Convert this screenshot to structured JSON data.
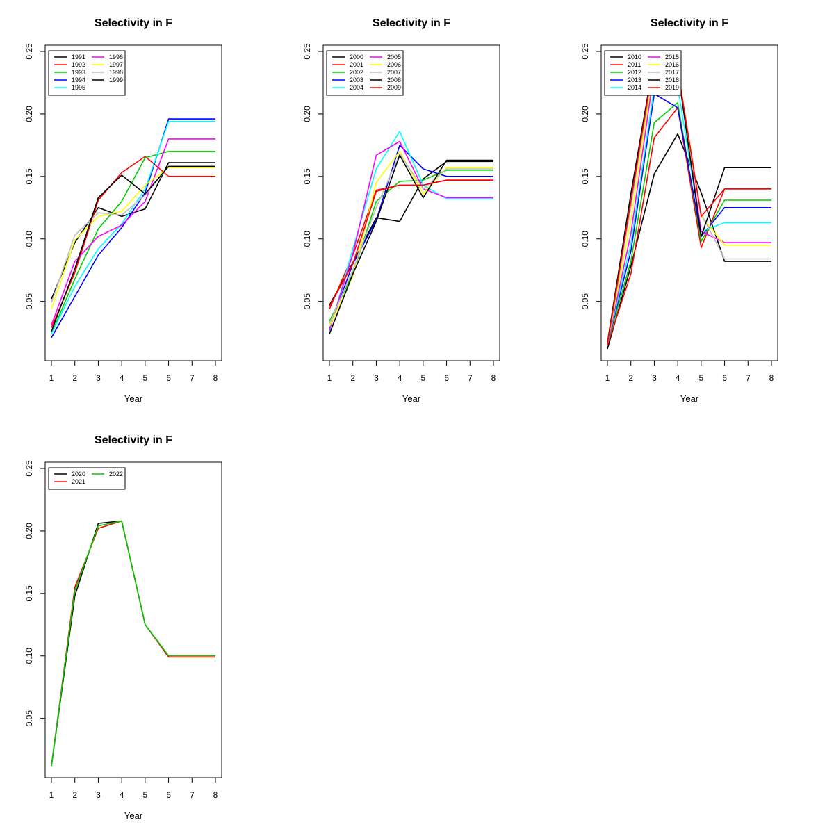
{
  "chart_data": [
    {
      "type": "line",
      "title": "Selectivity in F",
      "xlabel": "Year",
      "ylabel": "",
      "x": [
        1,
        2,
        3,
        4,
        5,
        6,
        7,
        8
      ],
      "x_ticks": [
        "1",
        "2",
        "3",
        "4",
        "5",
        "6",
        "7",
        "8"
      ],
      "y_ticks": [
        "0.05",
        "0.10",
        "0.15",
        "0.20",
        "0.25"
      ],
      "xlim": [
        1,
        8
      ],
      "ylim": [
        0.012,
        0.25
      ],
      "legend_position": "top-left",
      "legend_columns": 2,
      "series": [
        {
          "name": "1991",
          "color": "#000000",
          "values": [
            0.052,
            0.097,
            0.125,
            0.118,
            0.124,
            0.161,
            0.161,
            0.161
          ]
        },
        {
          "name": "1992",
          "color": "#ff0000",
          "values": [
            0.029,
            0.073,
            0.131,
            0.153,
            0.166,
            0.15,
            0.15,
            0.15
          ]
        },
        {
          "name": "1993",
          "color": "#00cd00",
          "values": [
            0.024,
            0.068,
            0.108,
            0.13,
            0.165,
            0.17,
            0.17,
            0.17
          ]
        },
        {
          "name": "1994",
          "color": "#0000ff",
          "values": [
            0.021,
            0.054,
            0.087,
            0.109,
            0.137,
            0.196,
            0.196,
            0.196
          ]
        },
        {
          "name": "1995",
          "color": "#00ffff",
          "values": [
            0.024,
            0.062,
            0.092,
            0.112,
            0.14,
            0.194,
            0.194,
            0.194
          ]
        },
        {
          "name": "1996",
          "color": "#ff00ff",
          "values": [
            0.031,
            0.082,
            0.102,
            0.111,
            0.13,
            0.18,
            0.18,
            0.18
          ]
        },
        {
          "name": "1997",
          "color": "#ffff00",
          "values": [
            0.044,
            0.099,
            0.118,
            0.122,
            0.143,
            0.157,
            0.157,
            0.157
          ]
        },
        {
          "name": "1998",
          "color": "#bebebe",
          "values": [
            0.049,
            0.103,
            0.121,
            0.119,
            0.135,
            0.158,
            0.158,
            0.158
          ]
        },
        {
          "name": "1999",
          "color": "#000000",
          "values": [
            0.026,
            0.076,
            0.133,
            0.151,
            0.136,
            0.158,
            0.158,
            0.158
          ]
        }
      ]
    },
    {
      "type": "line",
      "title": "Selectivity in F",
      "xlabel": "Year",
      "ylabel": "",
      "x": [
        1,
        2,
        3,
        4,
        5,
        6,
        7,
        8
      ],
      "x_ticks": [
        "1",
        "2",
        "3",
        "4",
        "5",
        "6",
        "7",
        "8"
      ],
      "y_ticks": [
        "0.05",
        "0.10",
        "0.15",
        "0.20",
        "0.25"
      ],
      "xlim": [
        1,
        8
      ],
      "ylim": [
        0.012,
        0.25
      ],
      "legend_position": "top-left",
      "legend_columns": 2,
      "series": [
        {
          "name": "2000",
          "color": "#000000",
          "values": [
            0.047,
            0.081,
            0.117,
            0.114,
            0.148,
            0.162,
            0.162,
            0.162
          ]
        },
        {
          "name": "2001",
          "color": "#ff0000",
          "values": [
            0.044,
            0.087,
            0.139,
            0.143,
            0.143,
            0.147,
            0.147,
            0.147
          ]
        },
        {
          "name": "2002",
          "color": "#00cd00",
          "values": [
            0.034,
            0.072,
            0.13,
            0.146,
            0.147,
            0.155,
            0.155,
            0.155
          ]
        },
        {
          "name": "2003",
          "color": "#0000ff",
          "values": [
            0.029,
            0.08,
            0.115,
            0.175,
            0.156,
            0.15,
            0.15,
            0.15
          ]
        },
        {
          "name": "2004",
          "color": "#00ffff",
          "values": [
            0.026,
            0.092,
            0.156,
            0.186,
            0.143,
            0.132,
            0.132,
            0.132
          ]
        },
        {
          "name": "2005",
          "color": "#ff00ff",
          "values": [
            0.027,
            0.088,
            0.167,
            0.178,
            0.14,
            0.133,
            0.133,
            0.133
          ]
        },
        {
          "name": "2006",
          "color": "#ffff00",
          "values": [
            0.03,
            0.07,
            0.145,
            0.17,
            0.136,
            0.157,
            0.157,
            0.157
          ]
        },
        {
          "name": "2007",
          "color": "#bebebe",
          "values": [
            0.032,
            0.075,
            0.125,
            0.168,
            0.14,
            0.156,
            0.156,
            0.156
          ]
        },
        {
          "name": "2008",
          "color": "#000000",
          "values": [
            0.024,
            0.072,
            0.114,
            0.167,
            0.133,
            0.163,
            0.163,
            0.163
          ]
        },
        {
          "name": "2009",
          "color": "#ff0000",
          "values": [
            0.046,
            0.08,
            0.138,
            0.143,
            0.143,
            0.147,
            0.147,
            0.147
          ]
        }
      ]
    },
    {
      "type": "line",
      "title": "Selectivity in F",
      "xlabel": "Year",
      "ylabel": "",
      "x": [
        1,
        2,
        3,
        4,
        5,
        6,
        7,
        8
      ],
      "x_ticks": [
        "1",
        "2",
        "3",
        "4",
        "5",
        "6",
        "7",
        "8"
      ],
      "y_ticks": [
        "0.05",
        "0.10",
        "0.15",
        "0.20",
        "0.25"
      ],
      "xlim": [
        1,
        8
      ],
      "ylim": [
        0.012,
        0.25
      ],
      "legend_position": "top-left",
      "legend_columns": 2,
      "series": [
        {
          "name": "2010",
          "color": "#000000",
          "values": [
            0.012,
            0.078,
            0.152,
            0.184,
            0.137,
            0.082,
            0.082,
            0.082
          ]
        },
        {
          "name": "2011",
          "color": "#ff0000",
          "values": [
            0.015,
            0.072,
            0.181,
            0.205,
            0.093,
            0.14,
            0.14,
            0.14
          ]
        },
        {
          "name": "2012",
          "color": "#00cd00",
          "values": [
            0.016,
            0.082,
            0.193,
            0.209,
            0.098,
            0.131,
            0.131,
            0.131
          ]
        },
        {
          "name": "2013",
          "color": "#0000ff",
          "values": [
            0.016,
            0.09,
            0.216,
            0.205,
            0.102,
            0.125,
            0.125,
            0.125
          ]
        },
        {
          "name": "2014",
          "color": "#00ffff",
          "values": [
            0.016,
            0.096,
            0.221,
            0.222,
            0.106,
            0.113,
            0.113,
            0.113
          ]
        },
        {
          "name": "2015",
          "color": "#ff00ff",
          "values": [
            0.016,
            0.104,
            0.235,
            0.235,
            0.106,
            0.097,
            0.097,
            0.097
          ]
        },
        {
          "name": "2016",
          "color": "#ffff00",
          "values": [
            0.016,
            0.115,
            0.24,
            0.232,
            0.118,
            0.095,
            0.095,
            0.095
          ]
        },
        {
          "name": "2017",
          "color": "#bebebe",
          "values": [
            0.016,
            0.125,
            0.243,
            0.236,
            0.12,
            0.084,
            0.084,
            0.084
          ]
        },
        {
          "name": "2018",
          "color": "#000000",
          "values": [
            0.017,
            0.136,
            0.245,
            0.236,
            0.102,
            0.157,
            0.157,
            0.157
          ]
        },
        {
          "name": "2019",
          "color": "#ff0000",
          "values": [
            0.016,
            0.13,
            0.244,
            0.236,
            0.118,
            0.14,
            0.14,
            0.14
          ]
        }
      ]
    },
    {
      "type": "line",
      "title": "Selectivity in F",
      "xlabel": "Year",
      "ylabel": "",
      "x": [
        1,
        2,
        3,
        4,
        5,
        6,
        7,
        8
      ],
      "x_ticks": [
        "1",
        "2",
        "3",
        "4",
        "5",
        "6",
        "7",
        "8"
      ],
      "y_ticks": [
        "0.05",
        "0.10",
        "0.15",
        "0.20",
        "0.25"
      ],
      "xlim": [
        1,
        8
      ],
      "ylim": [
        0.012,
        0.25
      ],
      "legend_position": "top-left",
      "legend_columns": 2,
      "series": [
        {
          "name": "2020",
          "color": "#000000",
          "values": [
            0.012,
            0.148,
            0.206,
            0.208,
            0.125,
            0.1,
            0.1,
            0.1
          ]
        },
        {
          "name": "2021",
          "color": "#ff0000",
          "values": [
            0.012,
            0.155,
            0.202,
            0.208,
            0.125,
            0.099,
            0.099,
            0.099
          ]
        },
        {
          "name": "2022",
          "color": "#00cd00",
          "values": [
            0.012,
            0.152,
            0.204,
            0.208,
            0.125,
            0.1,
            0.1,
            0.1
          ]
        }
      ]
    }
  ]
}
